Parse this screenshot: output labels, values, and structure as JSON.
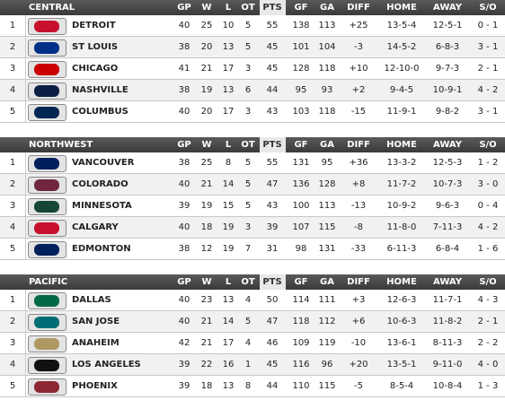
{
  "columns": [
    "GP",
    "W",
    "L",
    "OT",
    "PTS",
    "GF",
    "GA",
    "DIFF",
    "HOME",
    "AWAY",
    "S/O"
  ],
  "divisions": [
    {
      "name": "CENTRAL",
      "rows": [
        [
          1,
          "DETROIT",
          40,
          25,
          10,
          5,
          55,
          138,
          113,
          "+25",
          "13-5-4",
          "12-5-1",
          "0 - 1"
        ],
        [
          2,
          "ST LOUIS",
          38,
          20,
          13,
          5,
          45,
          101,
          104,
          -3,
          "14-5-2",
          "6-8-3",
          "3 - 1"
        ],
        [
          3,
          "CHICAGO",
          41,
          21,
          17,
          3,
          45,
          128,
          118,
          "+10",
          "12-10-0",
          "9-7-3",
          "2 - 1"
        ],
        [
          4,
          "NASHVILLE",
          38,
          19,
          13,
          6,
          44,
          95,
          93,
          "+2",
          "9-4-5",
          "10-9-1",
          "4 - 2"
        ],
        [
          5,
          "COLUMBUS",
          40,
          20,
          17,
          3,
          43,
          103,
          118,
          -15,
          "11-9-1",
          "9-8-2",
          "3 - 1"
        ]
      ]
    },
    {
      "name": "NORTHWEST",
      "rows": [
        [
          1,
          "VANCOUVER",
          38,
          25,
          8,
          5,
          55,
          131,
          95,
          "+36",
          "13-3-2",
          "12-5-3",
          "1 - 2"
        ],
        [
          2,
          "COLORADO",
          40,
          21,
          14,
          5,
          47,
          136,
          128,
          "+8",
          "11-7-2",
          "10-7-3",
          "3 - 0"
        ],
        [
          3,
          "MINNESOTA",
          39,
          19,
          15,
          5,
          43,
          100,
          113,
          -13,
          "10-9-2",
          "9-6-3",
          "0 - 4"
        ],
        [
          4,
          "CALGARY",
          40,
          18,
          19,
          3,
          39,
          107,
          115,
          -8,
          "11-8-0",
          "7-11-3",
          "4 - 2"
        ],
        [
          5,
          "EDMONTON",
          38,
          12,
          19,
          7,
          31,
          98,
          131,
          -33,
          "6-11-3",
          "6-8-4",
          "1 - 6"
        ]
      ]
    },
    {
      "name": "PACIFIC",
      "rows": [
        [
          1,
          "DALLAS",
          40,
          23,
          13,
          4,
          50,
          114,
          111,
          "+3",
          "12-6-3",
          "11-7-1",
          "4 - 3"
        ],
        [
          2,
          "SAN JOSE",
          40,
          21,
          14,
          5,
          47,
          118,
          112,
          "+6",
          "10-6-3",
          "11-8-2",
          "2 - 1"
        ],
        [
          3,
          "ANAHEIM",
          42,
          21,
          17,
          4,
          46,
          109,
          119,
          -10,
          "13-6-1",
          "8-11-3",
          "2 - 2"
        ],
        [
          4,
          "LOS ANGELES",
          39,
          22,
          16,
          1,
          45,
          116,
          96,
          "+20",
          "13-5-1",
          "9-11-0",
          "4 - 0"
        ],
        [
          5,
          "PHOENIX",
          39,
          18,
          13,
          8,
          44,
          110,
          115,
          -5,
          "8-5-4",
          "10-8-4",
          "1 - 3"
        ]
      ]
    }
  ]
}
